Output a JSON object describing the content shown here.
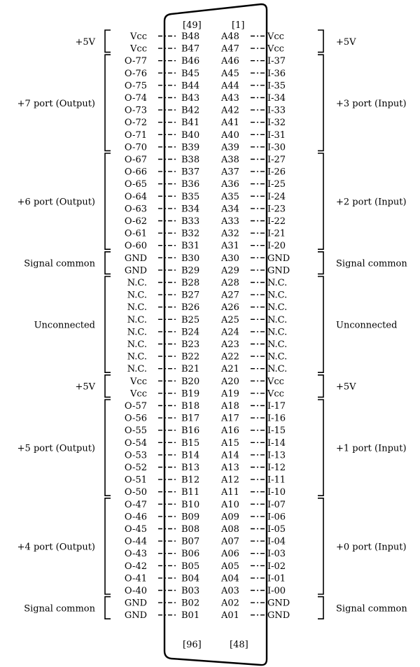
{
  "connector": {
    "top_left_number": "[49]",
    "top_right_number": "[1]",
    "bottom_left_number": "[96]",
    "bottom_right_number": "[48]"
  },
  "rows": [
    {
      "left": "Vcc",
      "b": "B48",
      "a": "A48",
      "right": "Vcc"
    },
    {
      "left": "Vcc",
      "b": "B47",
      "a": "A47",
      "right": "Vcc"
    },
    {
      "left": "O-77",
      "b": "B46",
      "a": "A46",
      "right": "I-37"
    },
    {
      "left": "O-76",
      "b": "B45",
      "a": "A45",
      "right": "I-36"
    },
    {
      "left": "O-75",
      "b": "B44",
      "a": "A44",
      "right": "I-35"
    },
    {
      "left": "O-74",
      "b": "B43",
      "a": "A43",
      "right": "I-34"
    },
    {
      "left": "O-73",
      "b": "B42",
      "a": "A42",
      "right": "I-33"
    },
    {
      "left": "O-72",
      "b": "B41",
      "a": "A41",
      "right": "I-32"
    },
    {
      "left": "O-71",
      "b": "B40",
      "a": "A40",
      "right": "I-31"
    },
    {
      "left": "O-70",
      "b": "B39",
      "a": "A39",
      "right": "I-30"
    },
    {
      "left": "O-67",
      "b": "B38",
      "a": "A38",
      "right": "I-27"
    },
    {
      "left": "O-66",
      "b": "B37",
      "a": "A37",
      "right": "I-26"
    },
    {
      "left": "O-65",
      "b": "B36",
      "a": "A36",
      "right": "I-25"
    },
    {
      "left": "O-64",
      "b": "B35",
      "a": "A35",
      "right": "I-24"
    },
    {
      "left": "O-63",
      "b": "B34",
      "a": "A34",
      "right": "I-23"
    },
    {
      "left": "O-62",
      "b": "B33",
      "a": "A33",
      "right": "I-22"
    },
    {
      "left": "O-61",
      "b": "B32",
      "a": "A32",
      "right": "I-21"
    },
    {
      "left": "O-60",
      "b": "B31",
      "a": "A31",
      "right": "I-20"
    },
    {
      "left": "GND",
      "b": "B30",
      "a": "A30",
      "right": "GND"
    },
    {
      "left": "GND",
      "b": "B29",
      "a": "A29",
      "right": "GND"
    },
    {
      "left": "N.C.",
      "b": "B28",
      "a": "A28",
      "right": "N.C."
    },
    {
      "left": "N.C.",
      "b": "B27",
      "a": "A27",
      "right": "N.C."
    },
    {
      "left": "N.C.",
      "b": "B26",
      "a": "A26",
      "right": "N.C."
    },
    {
      "left": "N.C.",
      "b": "B25",
      "a": "A25",
      "right": "N.C."
    },
    {
      "left": "N.C.",
      "b": "B24",
      "a": "A24",
      "right": "N.C."
    },
    {
      "left": "N.C.",
      "b": "B23",
      "a": "A23",
      "right": "N.C."
    },
    {
      "left": "N.C.",
      "b": "B22",
      "a": "A22",
      "right": "N.C."
    },
    {
      "left": "N.C.",
      "b": "B21",
      "a": "A21",
      "right": "N.C."
    },
    {
      "left": "Vcc",
      "b": "B20",
      "a": "A20",
      "right": "Vcc"
    },
    {
      "left": "Vcc",
      "b": "B19",
      "a": "A19",
      "right": "Vcc"
    },
    {
      "left": "O-57",
      "b": "B18",
      "a": "A18",
      "right": "I-17"
    },
    {
      "left": "O-56",
      "b": "B17",
      "a": "A17",
      "right": "I-16"
    },
    {
      "left": "O-55",
      "b": "B16",
      "a": "A16",
      "right": "I-15"
    },
    {
      "left": "O-54",
      "b": "B15",
      "a": "A15",
      "right": "I-14"
    },
    {
      "left": "O-53",
      "b": "B14",
      "a": "A14",
      "right": "I-13"
    },
    {
      "left": "O-52",
      "b": "B13",
      "a": "A13",
      "right": "I-12"
    },
    {
      "left": "O-51",
      "b": "B12",
      "a": "A12",
      "right": "I-11"
    },
    {
      "left": "O-50",
      "b": "B11",
      "a": "A11",
      "right": "I-10"
    },
    {
      "left": "O-47",
      "b": "B10",
      "a": "A10",
      "right": "I-07"
    },
    {
      "left": "O-46",
      "b": "B09",
      "a": "A09",
      "right": "I-06"
    },
    {
      "left": "O-45",
      "b": "B08",
      "a": "A08",
      "right": "I-05"
    },
    {
      "left": "O-44",
      "b": "B07",
      "a": "A07",
      "right": "I-04"
    },
    {
      "left": "O-43",
      "b": "B06",
      "a": "A06",
      "right": "I-03"
    },
    {
      "left": "O-42",
      "b": "B05",
      "a": "A05",
      "right": "I-02"
    },
    {
      "left": "O-41",
      "b": "B04",
      "a": "A04",
      "right": "I-01"
    },
    {
      "left": "O-40",
      "b": "B03",
      "a": "A03",
      "right": "I-00"
    },
    {
      "left": "GND",
      "b": "B02",
      "a": "A02",
      "right": "GND"
    },
    {
      "left": "GND",
      "b": "B01",
      "a": "A01",
      "right": "GND"
    }
  ],
  "groups": [
    {
      "side": "left",
      "first": 0,
      "last": 1,
      "label": "+5V"
    },
    {
      "side": "left",
      "first": 2,
      "last": 9,
      "label": "+7 port (Output)"
    },
    {
      "side": "left",
      "first": 10,
      "last": 17,
      "label": "+6 port (Output)"
    },
    {
      "side": "left",
      "first": 18,
      "last": 19,
      "label": "Signal common"
    },
    {
      "side": "left",
      "first": 20,
      "last": 27,
      "label": "Unconnected"
    },
    {
      "side": "left",
      "first": 28,
      "last": 29,
      "label": "+5V"
    },
    {
      "side": "left",
      "first": 30,
      "last": 37,
      "label": "+5 port (Output)"
    },
    {
      "side": "left",
      "first": 38,
      "last": 45,
      "label": "+4 port (Output)"
    },
    {
      "side": "left",
      "first": 46,
      "last": 47,
      "label": "Signal common"
    },
    {
      "side": "right",
      "first": 0,
      "last": 1,
      "label": "+5V"
    },
    {
      "side": "right",
      "first": 2,
      "last": 9,
      "label": "+3 port (Input)"
    },
    {
      "side": "right",
      "first": 10,
      "last": 17,
      "label": "+2 port (Input)"
    },
    {
      "side": "right",
      "first": 18,
      "last": 19,
      "label": "Signal common"
    },
    {
      "side": "right",
      "first": 20,
      "last": 27,
      "label": "Unconnected"
    },
    {
      "side": "right",
      "first": 28,
      "last": 29,
      "label": "+5V"
    },
    {
      "side": "right",
      "first": 30,
      "last": 37,
      "label": "+1 port (Input)"
    },
    {
      "side": "right",
      "first": 38,
      "last": 45,
      "label": "+0 port (Input)"
    },
    {
      "side": "right",
      "first": 46,
      "last": 47,
      "label": "Signal common"
    }
  ]
}
